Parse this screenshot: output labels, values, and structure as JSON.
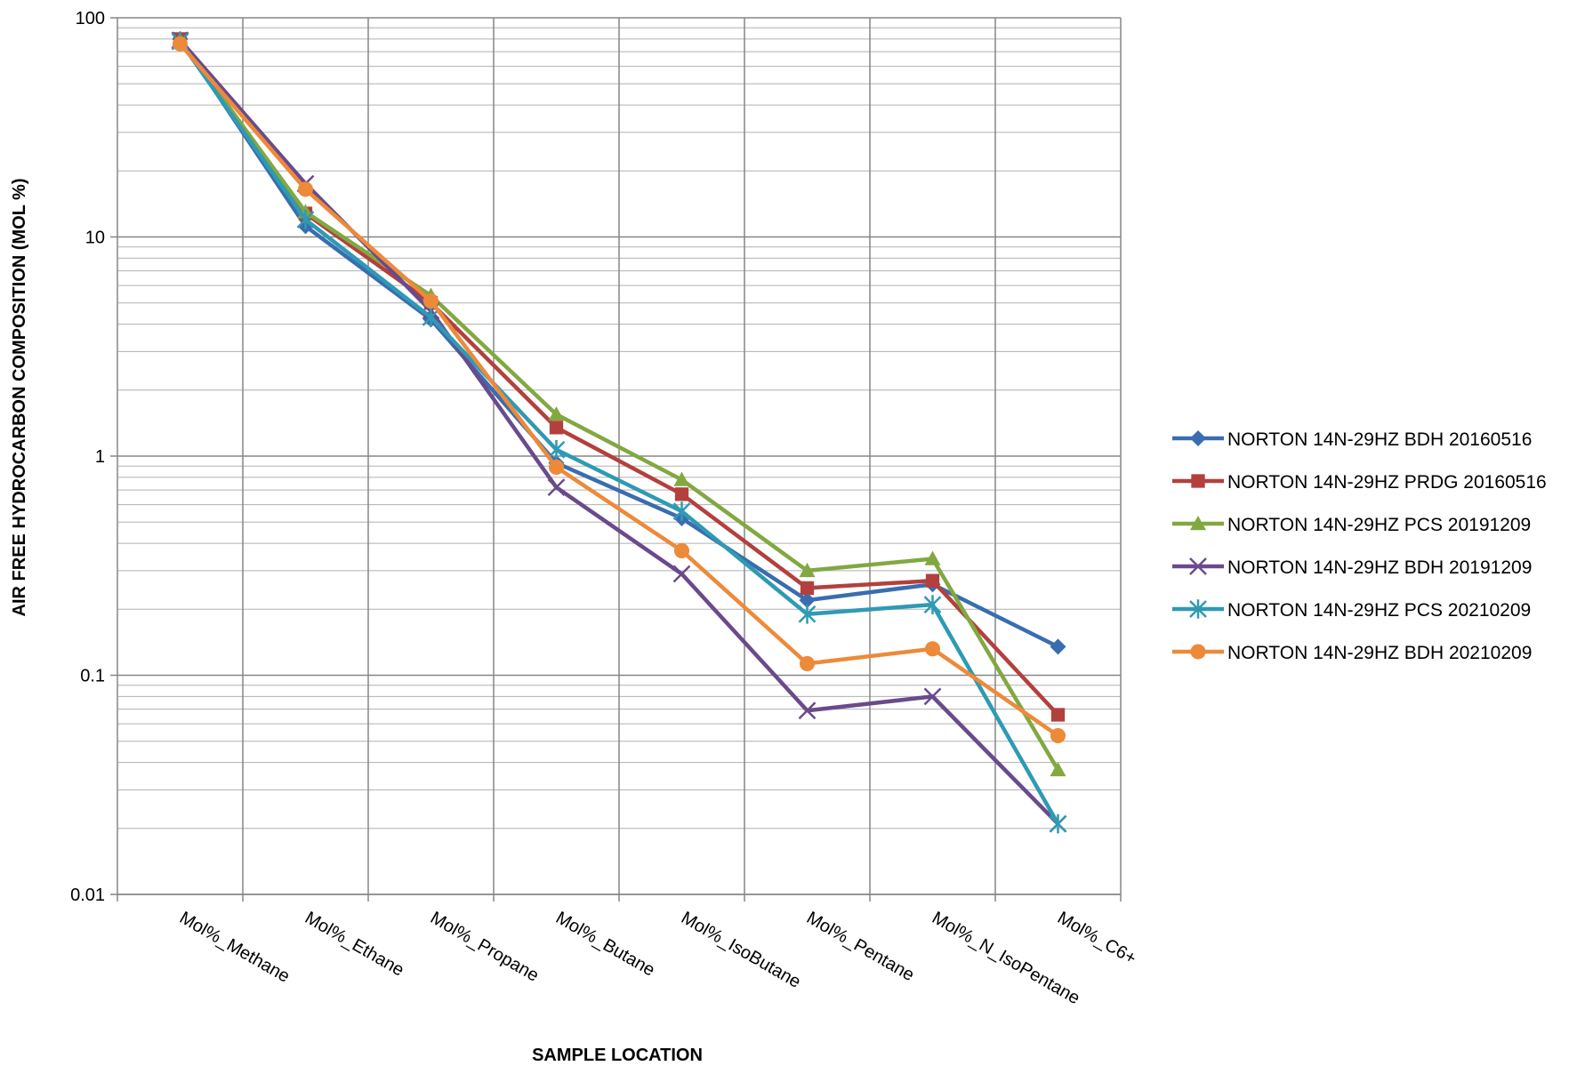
{
  "chart_data": {
    "type": "line",
    "title": "",
    "xlabel": "SAMPLE LOCATION",
    "ylabel": "AIR FREE HYDROCARBON COMPOSITION (MOL %)",
    "yscale": "log",
    "ylim": [
      0.01,
      100
    ],
    "yticks": [
      "0.01",
      "0.1",
      "1",
      "10",
      "100"
    ],
    "grid": true,
    "legend": "right",
    "categories": [
      "Mol%_Methane",
      "Mol%_Ethane",
      "Mol%_Propane",
      "Mol%_Butane",
      "Mol%_IsoButane",
      "Mol%_Pentane",
      "Mol%_N_IsoPentane",
      "Mol%_C6+"
    ],
    "series": [
      {
        "name": "NORTON 14N-29HZ BDH 20160516",
        "color": "#3A6DAF",
        "marker": "diamond",
        "values": [
          80,
          11.2,
          4.2,
          0.93,
          0.52,
          0.22,
          0.26,
          0.135
        ]
      },
      {
        "name": "NORTON 14N-29HZ PRDG 20160516",
        "color": "#B3403D",
        "marker": "square",
        "values": [
          80,
          12.8,
          5.0,
          1.35,
          0.67,
          0.25,
          0.27,
          0.066
        ]
      },
      {
        "name": "NORTON 14N-29HZ PCS 20191209",
        "color": "#82A840",
        "marker": "triangle",
        "values": [
          79,
          13.0,
          5.4,
          1.55,
          0.78,
          0.3,
          0.34,
          0.037
        ]
      },
      {
        "name": "NORTON 14N-29HZ BDH 20191209",
        "color": "#6A4A8C",
        "marker": "x",
        "values": [
          79,
          17.5,
          4.6,
          0.72,
          0.29,
          0.069,
          0.08,
          0.021
        ]
      },
      {
        "name": "NORTON 14N-29HZ PCS 20210209",
        "color": "#2E9AB4",
        "marker": "star",
        "values": [
          78,
          12.0,
          4.3,
          1.07,
          0.56,
          0.19,
          0.21,
          0.021
        ]
      },
      {
        "name": "NORTON 14N-29HZ BDH 20210209",
        "color": "#ED8A3A",
        "marker": "circle",
        "values": [
          76,
          16.5,
          5.1,
          0.89,
          0.37,
          0.113,
          0.132,
          0.053
        ]
      }
    ]
  }
}
